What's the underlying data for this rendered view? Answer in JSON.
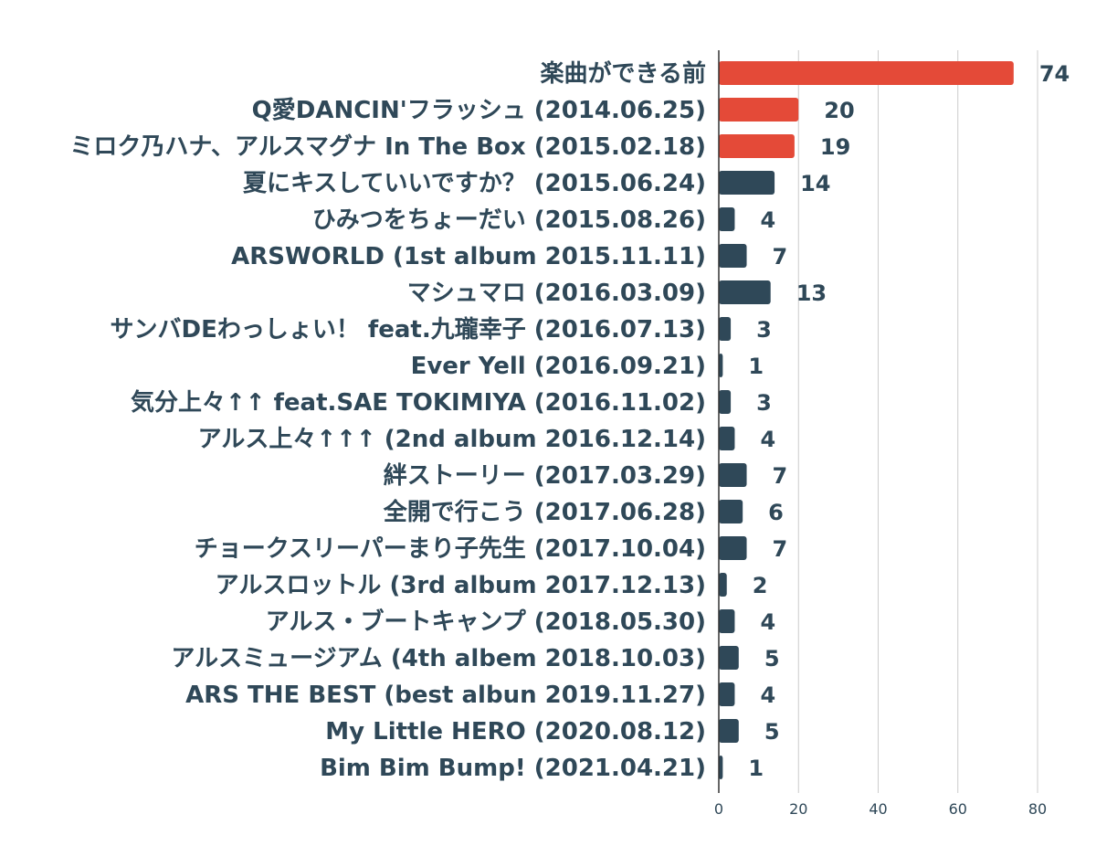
{
  "chart_data": {
    "type": "bar",
    "orientation": "horizontal",
    "categories": [
      "楽曲ができる前",
      "Q愛DANCIN'フラッシュ (2014.06.25)",
      "ミロク乃ハナ、アルスマグナ In The Box (2015.02.18)",
      "夏にキスしていいですか？ (2015.06.24)",
      "ひみつをちょーだい (2015.08.26)",
      "ARSWORLD (1st album 2015.11.11)",
      "マシュマロ (2016.03.09)",
      "サンバDEわっしょい！ feat.九瓏幸子 (2016.07.13)",
      "Ever Yell (2016.09.21)",
      "気分上々↑↑ feat.SAE TOKIMIYA  (2016.11.02)",
      "アルス上々↑↑↑ (2nd album 2016.12.14)",
      "絆ストーリー (2017.03.29)",
      "全開で行こう (2017.06.28)",
      "チョークスリーパーまり子先生 (2017.10.04)",
      "アルスロットル (3rd album 2017.12.13)",
      "アルス・ブートキャンプ (2018.05.30)",
      "アルスミュージアム (4th albem 2018.10.03)",
      "ARS THE BEST (best albun 2019.11.27)",
      "My Little HERO (2020.08.12)",
      "Bim Bim Bump! (2021.04.21)"
    ],
    "values": [
      74,
      20,
      19,
      14,
      4,
      7,
      13,
      3,
      1,
      3,
      4,
      7,
      6,
      7,
      2,
      4,
      5,
      4,
      5,
      1
    ],
    "highlight": [
      true,
      true,
      true,
      false,
      false,
      false,
      false,
      false,
      false,
      false,
      false,
      false,
      false,
      false,
      false,
      false,
      false,
      false,
      false,
      false
    ],
    "xlim": [
      0,
      80
    ],
    "xticks": [
      0,
      20,
      40,
      60,
      80
    ],
    "grid": true,
    "data_labels": true,
    "colors": {
      "highlight": "#e44a38",
      "default": "#2f4858"
    },
    "title": "",
    "xlabel": "",
    "ylabel": ""
  }
}
